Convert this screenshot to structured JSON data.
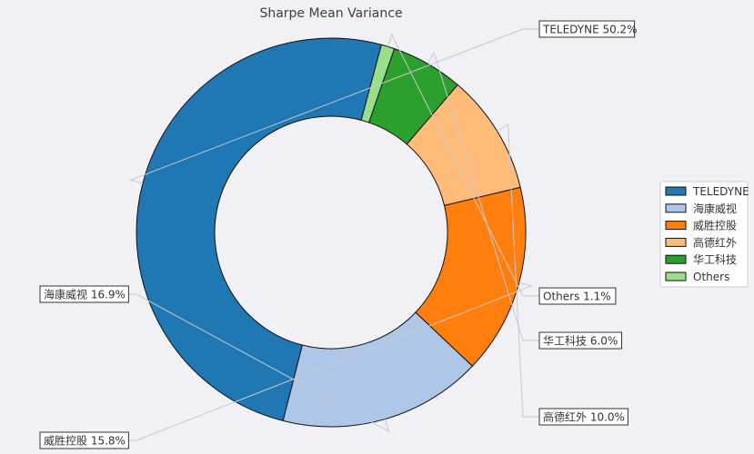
{
  "chart_data": {
    "type": "pie",
    "title": "Sharpe Mean Variance",
    "donut": true,
    "legend_position": "right",
    "slices": [
      {
        "label": "TELEDYNE",
        "value": 50.2,
        "callout": "TELEDYNE 50.2%",
        "color": "#1f77b4"
      },
      {
        "label": "海康威视",
        "value": 16.9,
        "callout": "海康威视 16.9%",
        "color": "#aec7e8"
      },
      {
        "label": "威胜控股",
        "value": 15.8,
        "callout": "威胜控股 15.8%",
        "color": "#ff7f0e"
      },
      {
        "label": "高德红外",
        "value": 10.0,
        "callout": "高德红外 10.0%",
        "color": "#ffbb78"
      },
      {
        "label": "华工科技",
        "value": 6.0,
        "callout": "华工科技 6.0%",
        "color": "#2ca02c"
      },
      {
        "label": "Others",
        "value": 1.1,
        "callout": "Others 1.1%",
        "color": "#98df8a"
      }
    ]
  }
}
